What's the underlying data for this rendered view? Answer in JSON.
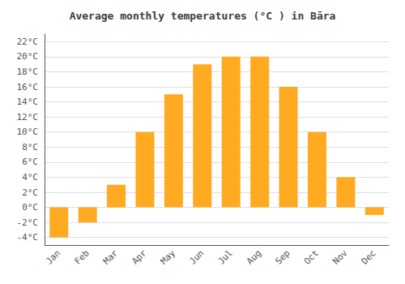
{
  "chart_data": {
    "type": "bar",
    "title": "Average monthly temperatures (°C ) in Bāra",
    "categories": [
      "Jan",
      "Feb",
      "Mar",
      "Apr",
      "May",
      "Jun",
      "Jul",
      "Aug",
      "Sep",
      "Oct",
      "Nov",
      "Dec"
    ],
    "values": [
      -4,
      -2,
      3,
      10,
      15,
      19,
      20,
      20,
      16,
      10,
      4,
      -1
    ],
    "color": "#FFAA20",
    "ylim": [
      -5,
      23
    ],
    "yticks": [
      {
        "value": -4,
        "label": "-4°C"
      },
      {
        "value": -2,
        "label": "-2°C"
      },
      {
        "value": 0,
        "label": "0°C"
      },
      {
        "value": 2,
        "label": "2°C"
      },
      {
        "value": 4,
        "label": "4°C"
      },
      {
        "value": 6,
        "label": "6°C"
      },
      {
        "value": 8,
        "label": "8°C"
      },
      {
        "value": 10,
        "label": "10°C"
      },
      {
        "value": 12,
        "label": "12°C"
      },
      {
        "value": 14,
        "label": "14°C"
      },
      {
        "value": 16,
        "label": "16°C"
      },
      {
        "value": 18,
        "label": "18°C"
      },
      {
        "value": 20,
        "label": "20°C"
      },
      {
        "value": 22,
        "label": "22°C"
      }
    ],
    "grid": true
  }
}
